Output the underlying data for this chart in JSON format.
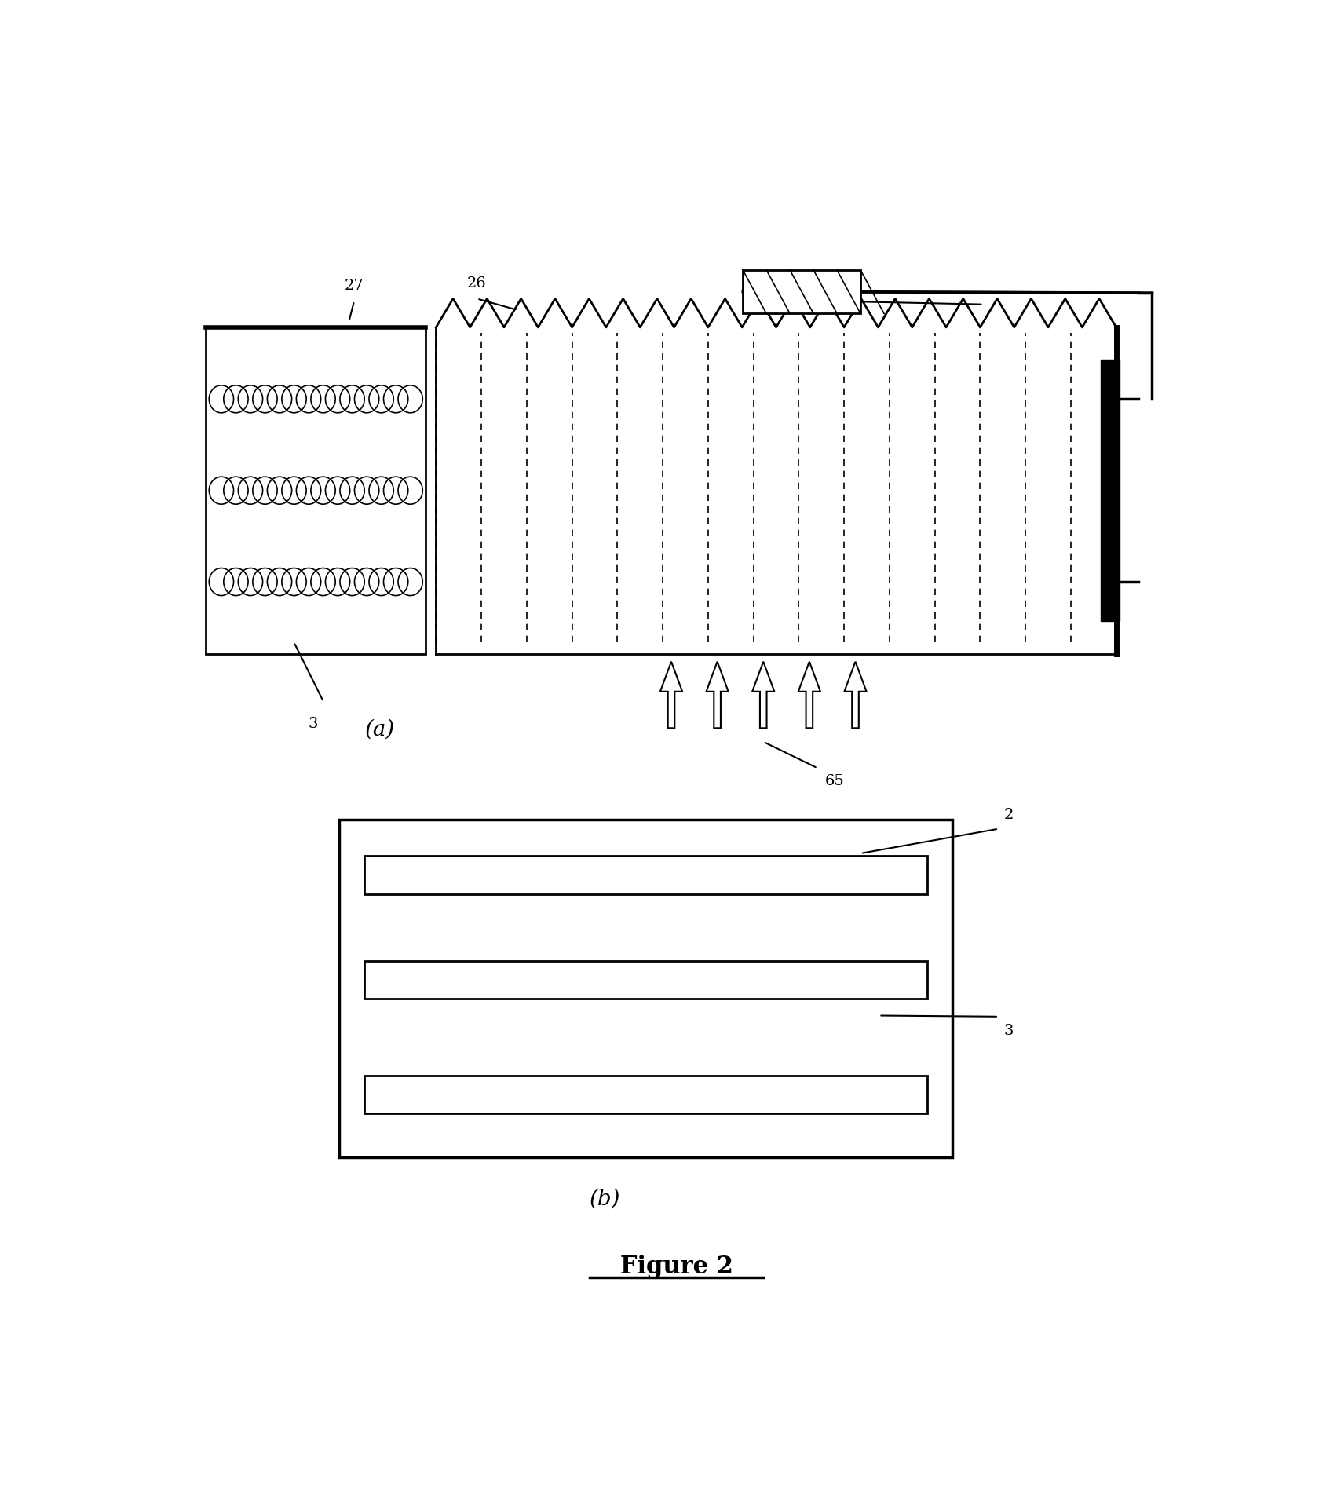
{
  "fig_width": 16.81,
  "fig_height": 18.94,
  "bg_color": "#ffffff",
  "line_color": "#000000",
  "title": "Figure 2",
  "label_a": "(a)",
  "label_b": "(b)"
}
